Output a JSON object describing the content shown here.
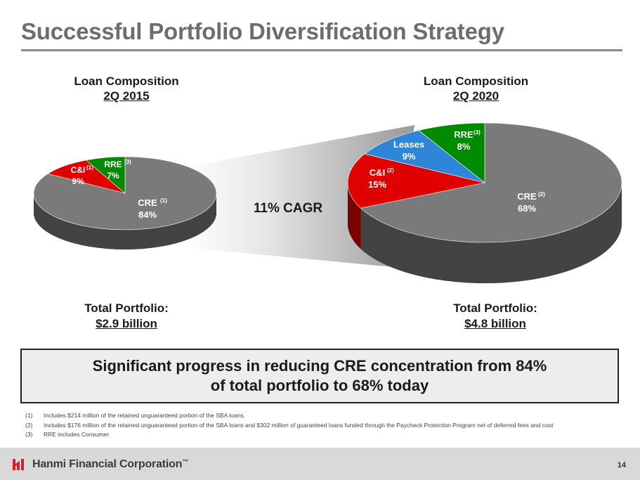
{
  "slide": {
    "title": "Successful Portfolio Diversification Strategy",
    "page_number": "14"
  },
  "left_chart": {
    "heading_line1": "Loan Composition",
    "heading_line2": "2Q 2015",
    "total_line1": "Total Portfolio:",
    "total_line2": "$2.9 billion"
  },
  "right_chart": {
    "heading_line1": "Loan Composition",
    "heading_line2": "2Q 2020",
    "total_line1": "Total Portfolio:",
    "total_line2": "$4.8 billion"
  },
  "cagr_label": "11% CAGR",
  "callout": {
    "line1": "Significant progress in reducing CRE concentration from 84%",
    "line2": "of total portfolio to 68% today"
  },
  "footnotes": [
    {
      "num": "(1)",
      "text": "Includes $214 million of the retained unguaranteed portion of the SBA loans."
    },
    {
      "num": "(2)",
      "text": "Includes $176 million of the retained unguaranteed portion of the SBA loans and $302 million of guaranteed loans funded through the Paycheck Protection Program net of deferred fees and cost"
    },
    {
      "num": "(3)",
      "text": "RRE includes Consumer"
    }
  ],
  "footer": {
    "company": "Hanmi Financial Corporation",
    "trademark": "™"
  },
  "colors": {
    "cre": "#7a7a7a",
    "cnci": "#e00000",
    "rre": "#008a00",
    "leases": "#2e86d8",
    "title": "#6d6d6d"
  },
  "chart_data": [
    {
      "type": "pie",
      "title": "Loan Composition 2Q 2015",
      "slices": [
        {
          "label": "CRE",
          "note": "(1)",
          "value": 84,
          "display": "84%",
          "color": "#7a7a7a"
        },
        {
          "label": "C&I",
          "note": "(1)",
          "value": 9,
          "display": "9%",
          "color": "#e00000"
        },
        {
          "label": "RRE",
          "note": "(3)",
          "value": 7,
          "display": "7%",
          "color": "#008a00"
        }
      ]
    },
    {
      "type": "pie",
      "title": "Loan Composition 2Q 2020",
      "slices": [
        {
          "label": "CRE",
          "note": "(2)",
          "value": 68,
          "display": "68%",
          "color": "#7a7a7a"
        },
        {
          "label": "C&I",
          "note": "(2)",
          "value": 15,
          "display": "15%",
          "color": "#e00000"
        },
        {
          "label": "Leases",
          "note": "",
          "value": 9,
          "display": "9%",
          "color": "#2e86d8"
        },
        {
          "label": "RRE",
          "note": "(3)",
          "value": 8,
          "display": "8%",
          "color": "#008a00"
        }
      ]
    }
  ]
}
